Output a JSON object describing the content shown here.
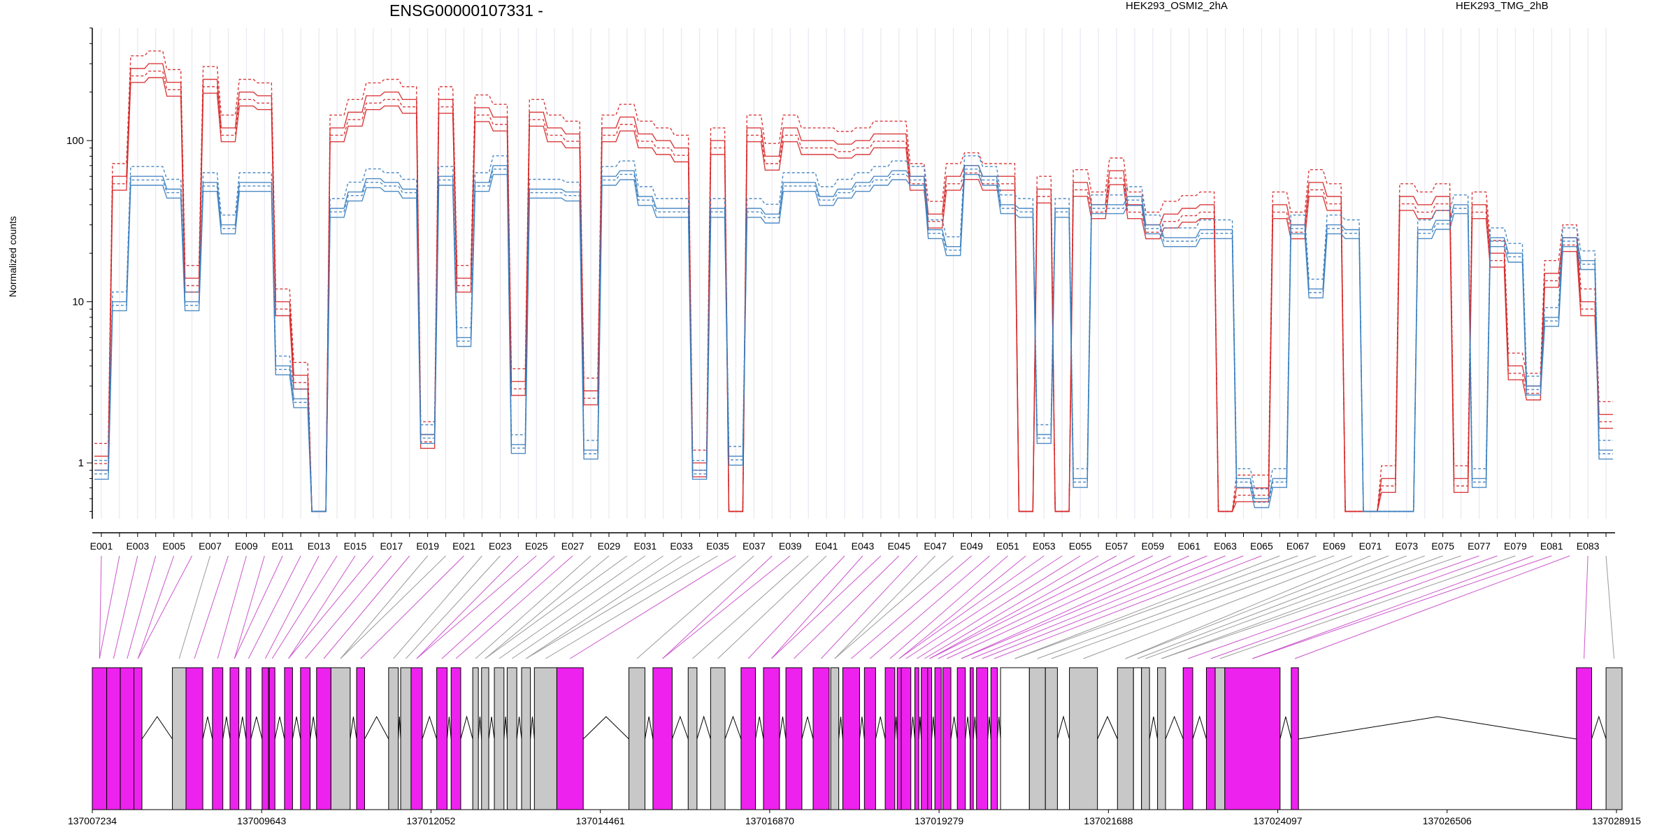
{
  "chart_data": {
    "type": "line",
    "title": "ENSG00000107331 -",
    "ylabel": "Normalized counts",
    "xlabel": "",
    "yscale": "log",
    "ylim": [
      0.45,
      500
    ],
    "grid": true,
    "legend_placement": "top",
    "y_ticks": [
      "1",
      "10",
      "100"
    ],
    "x_tick_labels": [
      "E001",
      "E003",
      "E005",
      "E007",
      "E009",
      "E011",
      "E013",
      "E015",
      "E017",
      "E019",
      "E021",
      "E023",
      "E025",
      "E027",
      "E029",
      "E031",
      "E033",
      "E035",
      "E037",
      "E039",
      "E041",
      "E043",
      "E045",
      "E047",
      "E049",
      "E051",
      "E053",
      "E055",
      "E057",
      "E059",
      "E061",
      "E063",
      "E065",
      "E067",
      "E069",
      "E071",
      "E073",
      "E075",
      "E077",
      "E079",
      "E081",
      "E083"
    ],
    "categories": [
      "E001",
      "E002",
      "E003",
      "E004",
      "E005",
      "E006",
      "E007",
      "E008",
      "E009",
      "E010",
      "E011",
      "E012",
      "E013",
      "E014",
      "E015",
      "E016",
      "E017",
      "E018",
      "E019",
      "E020",
      "E021",
      "E022",
      "E023",
      "E024",
      "E025",
      "E026",
      "E027",
      "E028",
      "E029",
      "E030",
      "E031",
      "E032",
      "E033",
      "E034",
      "E035",
      "E036",
      "E037",
      "E038",
      "E039",
      "E040",
      "E041",
      "E042",
      "E043",
      "E044",
      "E045",
      "E046",
      "E047",
      "E048",
      "E049",
      "E050",
      "E051",
      "E052",
      "E053",
      "E054",
      "E055",
      "E056",
      "E057",
      "E058",
      "E059",
      "E060",
      "E061",
      "E062",
      "E063",
      "E064",
      "E065",
      "E066",
      "E067",
      "E068",
      "E069",
      "E070",
      "E071",
      "E072",
      "E073",
      "E074",
      "E075",
      "E076",
      "E077",
      "E078",
      "E079",
      "E080",
      "E081",
      "E082",
      "E083",
      "E084"
    ],
    "series": [
      {
        "name": "HEK293_OSMI2_2hA",
        "color": "#d62728",
        "values": [
          1.1,
          60,
          280,
          300,
          230,
          14,
          240,
          120,
          200,
          190,
          10,
          3.5,
          0.5,
          120,
          150,
          190,
          200,
          180,
          1.5,
          180,
          14,
          160,
          140,
          3.2,
          150,
          120,
          110,
          2.8,
          120,
          140,
          110,
          100,
          90,
          1.0,
          100,
          0.5,
          120,
          80,
          120,
          100,
          100,
          95,
          100,
          110,
          110,
          60,
          35,
          60,
          70,
          60,
          60,
          0.5,
          50,
          0.5,
          55,
          40,
          65,
          40,
          30,
          35,
          38,
          40,
          0.5,
          0.7,
          0.7,
          40,
          30,
          55,
          45,
          0.5,
          0.5,
          0.8,
          45,
          40,
          45,
          0.8,
          40,
          20,
          4,
          3,
          15,
          25,
          10,
          2
        ]
      },
      {
        "name": "HEK293_TMG_2hB",
        "color": "#3a7ebf",
        "values": [
          0.9,
          10,
          60,
          60,
          50,
          10,
          55,
          30,
          55,
          55,
          4,
          2.5,
          0.5,
          38,
          48,
          58,
          55,
          50,
          1.5,
          60,
          6,
          55,
          70,
          1.3,
          50,
          50,
          48,
          1.2,
          60,
          65,
          45,
          38,
          38,
          0.9,
          38,
          1.1,
          38,
          35,
          55,
          55,
          45,
          50,
          55,
          60,
          65,
          60,
          28,
          22,
          70,
          60,
          40,
          38,
          1.5,
          38,
          0.8,
          40,
          40,
          45,
          30,
          25,
          25,
          28,
          28,
          0.8,
          0.6,
          0.8,
          30,
          12,
          30,
          28,
          0.5,
          0.5,
          0.5,
          28,
          32,
          40,
          0.8,
          25,
          20,
          3,
          8,
          25,
          18,
          1.2
        ]
      }
    ]
  },
  "gene_model": {
    "coordinate_labels": [
      "137007234",
      "137009643",
      "137012052",
      "137014461",
      "137016870",
      "137019279",
      "137021688",
      "137024097",
      "137026506",
      "137028915"
    ],
    "colors": {
      "differential": "#ee22ee",
      "nondifferential": "#c8c8c8",
      "intron": "#ffffff"
    },
    "blocks": [
      [
        0,
        18,
        "m"
      ],
      [
        18,
        35,
        "m"
      ],
      [
        35,
        52,
        "m"
      ],
      [
        52,
        62,
        "m"
      ],
      [
        100,
        117,
        "g"
      ],
      [
        117,
        138,
        "m"
      ],
      [
        150,
        163,
        "m"
      ],
      [
        172,
        183,
        "m"
      ],
      [
        192,
        198,
        "m"
      ],
      [
        212,
        220,
        "m"
      ],
      [
        221,
        228,
        "m"
      ],
      [
        240,
        250,
        "m"
      ],
      [
        260,
        272,
        "m"
      ],
      [
        280,
        298,
        "m"
      ],
      [
        298,
        322,
        "g"
      ],
      [
        330,
        340,
        "m"
      ],
      [
        370,
        382,
        "g"
      ],
      [
        385,
        398,
        "g"
      ],
      [
        398,
        412,
        "m"
      ],
      [
        430,
        443,
        "m"
      ],
      [
        448,
        460,
        "m"
      ],
      [
        475,
        482,
        "g"
      ],
      [
        486,
        495,
        "g"
      ],
      [
        502,
        514,
        "g"
      ],
      [
        518,
        530,
        "g"
      ],
      [
        536,
        547,
        "g"
      ],
      [
        552,
        580,
        "g"
      ],
      [
        580,
        613,
        "m"
      ],
      [
        670,
        690,
        "g"
      ],
      [
        700,
        724,
        "m"
      ],
      [
        744,
        755,
        "g"
      ],
      [
        772,
        790,
        "g"
      ],
      [
        810,
        828,
        "m"
      ],
      [
        838,
        858,
        "m"
      ],
      [
        866,
        886,
        "m"
      ],
      [
        900,
        920,
        "m"
      ],
      [
        922,
        932,
        "g"
      ],
      [
        937,
        958,
        "m"
      ],
      [
        964,
        978,
        "m"
      ],
      [
        990,
        1002,
        "m"
      ],
      [
        1005,
        1010,
        "m"
      ],
      [
        1010,
        1022,
        "m"
      ],
      [
        1027,
        1032,
        "m"
      ],
      [
        1035,
        1043,
        "m"
      ],
      [
        1043,
        1048,
        "m"
      ],
      [
        1052,
        1060,
        "m"
      ],
      [
        1062,
        1072,
        "m"
      ],
      [
        1080,
        1090,
        "m"
      ],
      [
        1096,
        1100,
        "m"
      ],
      [
        1104,
        1118,
        "m"
      ],
      [
        1122,
        1130,
        "m"
      ],
      [
        1134,
        1170,
        "w"
      ],
      [
        1170,
        1190,
        "g"
      ],
      [
        1190,
        1205,
        "g"
      ],
      [
        1220,
        1255,
        "g"
      ],
      [
        1280,
        1300,
        "g"
      ],
      [
        1300,
        1310,
        "w"
      ],
      [
        1310,
        1320,
        "g"
      ],
      [
        1330,
        1340,
        "g"
      ],
      [
        1362,
        1374,
        "m"
      ],
      [
        1391,
        1402,
        "m"
      ],
      [
        1402,
        1414,
        "g"
      ],
      [
        1414,
        1483,
        "m"
      ],
      [
        1497,
        1506,
        "m"
      ],
      [
        1853,
        1872,
        "m"
      ],
      [
        1890,
        1910,
        "g"
      ]
    ]
  }
}
